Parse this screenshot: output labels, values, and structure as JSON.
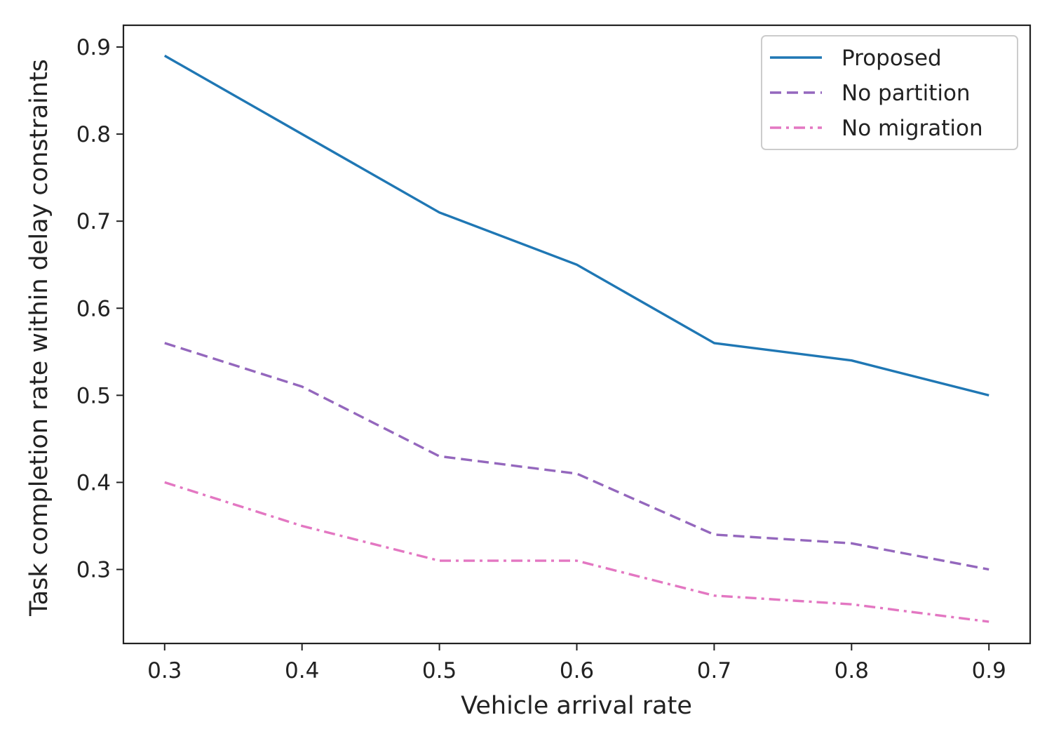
{
  "chart_data": {
    "type": "line",
    "title": "",
    "xlabel": "Vehicle arrival rate",
    "ylabel": "Task completion rate within delay constraints",
    "x": [
      0.3,
      0.4,
      0.5,
      0.6,
      0.7,
      0.8,
      0.9
    ],
    "xticks": [
      "0.3",
      "0.4",
      "0.5",
      "0.6",
      "0.7",
      "0.8",
      "0.9"
    ],
    "yticks": [
      "0.3",
      "0.4",
      "0.5",
      "0.6",
      "0.7",
      "0.8",
      "0.9"
    ],
    "xlim": [
      0.27,
      0.93
    ],
    "ylim": [
      0.215,
      0.925
    ],
    "grid": false,
    "legend_position": "top-right",
    "series": [
      {
        "name": "Proposed",
        "style": "solid",
        "color": "#1f77b4",
        "values": [
          0.89,
          0.8,
          0.71,
          0.65,
          0.56,
          0.54,
          0.5
        ]
      },
      {
        "name": "No partition",
        "style": "dashed",
        "color": "#9467bd",
        "values": [
          0.56,
          0.51,
          0.43,
          0.41,
          0.34,
          0.33,
          0.3
        ]
      },
      {
        "name": "No migration",
        "style": "dashdot",
        "color": "#e377c2",
        "values": [
          0.4,
          0.35,
          0.31,
          0.31,
          0.27,
          0.26,
          0.24
        ]
      }
    ]
  }
}
